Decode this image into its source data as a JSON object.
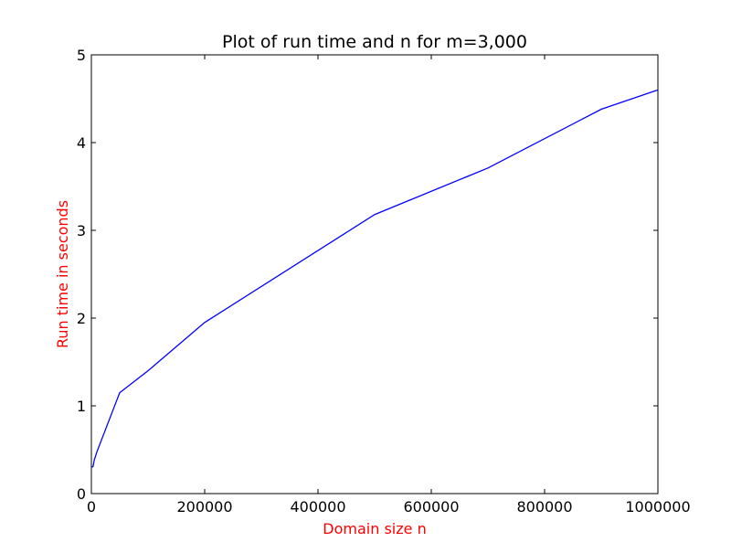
{
  "chart_data": {
    "type": "line",
    "title": "Plot of run time and n for m=3,000",
    "xlabel": "Domain size n",
    "ylabel": "Run time in seconds",
    "xlim": [
      0,
      1000000
    ],
    "ylim": [
      0,
      5
    ],
    "x_ticks": [
      "0",
      "200000",
      "400000",
      "600000",
      "800000",
      "1000000"
    ],
    "y_ticks": [
      "0",
      "1",
      "2",
      "3",
      "4",
      "5"
    ],
    "grid": false,
    "series": [
      {
        "color": "#0000ff",
        "x": [
          1000,
          3000,
          5000,
          10000,
          50000,
          100000,
          200000,
          500000,
          700000,
          900000,
          1000000
        ],
        "y": [
          0.3,
          0.31,
          0.38,
          0.48,
          1.15,
          1.4,
          1.95,
          3.18,
          3.71,
          4.38,
          4.6
        ]
      }
    ],
    "colors": {
      "axis_label": "#ff0000",
      "line": "#0000ff",
      "frame": "#000000"
    }
  }
}
